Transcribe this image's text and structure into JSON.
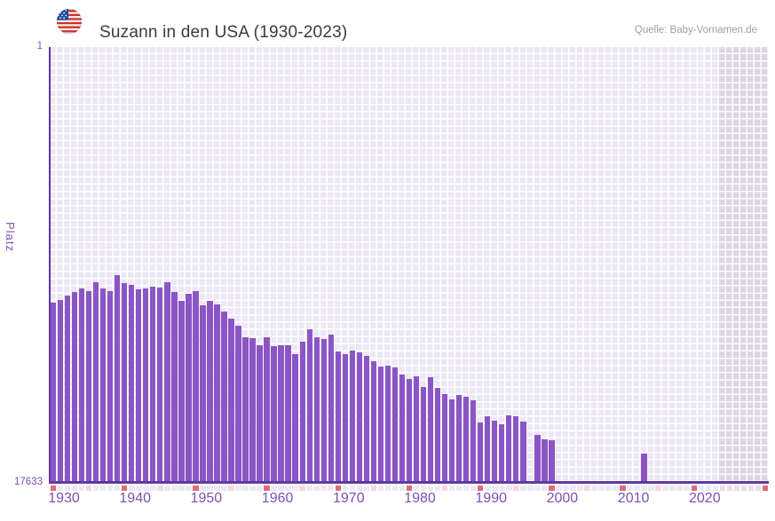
{
  "chart_data": {
    "type": "bar",
    "title": "Suzann in den USA (1930-2023)",
    "source": "Quelle: Baby-Vornamen.de",
    "ylabel": "Platz",
    "y_axis": {
      "top_label": "1",
      "bottom_label": "17633",
      "min": 1,
      "max": 17633,
      "inverted": true
    },
    "x_tick_labels": [
      "1930",
      "1940",
      "1950",
      "1960",
      "1970",
      "1980",
      "1990",
      "2000",
      "2010",
      "2020"
    ],
    "year_start": 1930,
    "year_end": 2023,
    "grid_end_year": 2030,
    "shaded_from_year": 2024,
    "years": [
      1930,
      1931,
      1932,
      1933,
      1934,
      1935,
      1936,
      1937,
      1938,
      1939,
      1940,
      1941,
      1942,
      1943,
      1944,
      1945,
      1946,
      1947,
      1948,
      1949,
      1950,
      1951,
      1952,
      1953,
      1954,
      1955,
      1956,
      1957,
      1958,
      1959,
      1960,
      1961,
      1962,
      1963,
      1964,
      1965,
      1966,
      1967,
      1968,
      1969,
      1970,
      1971,
      1972,
      1973,
      1974,
      1975,
      1976,
      1977,
      1978,
      1979,
      1980,
      1981,
      1982,
      1983,
      1984,
      1985,
      1986,
      1987,
      1988,
      1989,
      1990,
      1991,
      1992,
      1993,
      1994,
      1995,
      1996,
      1997,
      1998,
      1999,
      2000,
      2001,
      2002,
      2003,
      2004,
      2005,
      2006,
      2007,
      2008,
      2009,
      2010,
      2011,
      2012,
      2013,
      2014,
      2015,
      2016,
      2017,
      2018,
      2019,
      2020,
      2021,
      2022,
      2023
    ],
    "ranks": [
      10380,
      10260,
      10110,
      9940,
      9800,
      9900,
      9540,
      9800,
      9920,
      9270,
      9610,
      9650,
      9830,
      9800,
      9720,
      9770,
      9560,
      9960,
      10310,
      10030,
      9930,
      10500,
      10310,
      10470,
      10740,
      11050,
      11340,
      11780,
      11820,
      12130,
      11780,
      12140,
      12120,
      12120,
      12470,
      11980,
      11480,
      11780,
      11880,
      11700,
      12360,
      12470,
      12320,
      12410,
      12560,
      12760,
      12980,
      12940,
      13010,
      13310,
      13480,
      13370,
      13810,
      13430,
      13850,
      14090,
      14330,
      14130,
      14210,
      14350,
      15240,
      15010,
      15190,
      15330,
      14970,
      15010,
      15220,
      null,
      15740,
      15930,
      15970,
      null,
      null,
      null,
      null,
      null,
      null,
      null,
      null,
      null,
      null,
      null,
      null,
      16530,
      null,
      null,
      null,
      null,
      null,
      null,
      null,
      null,
      null,
      null
    ],
    "legend": null,
    "grid": true,
    "colors": {
      "bar": "#8c55c5",
      "axis_line": "#5d3a9f",
      "cell_light": "#ece7f5",
      "cell_dark": "#dcd6e8",
      "tick_decade": "#df6d79",
      "tick_half_decade": "#f4d9df",
      "tick_default": "#ede8f6",
      "tick_default_shaded": "#e6e0ef",
      "axis_text": "#7c50b6",
      "title_text": "#3b3b42",
      "source_text": "#a0a0a0"
    }
  }
}
